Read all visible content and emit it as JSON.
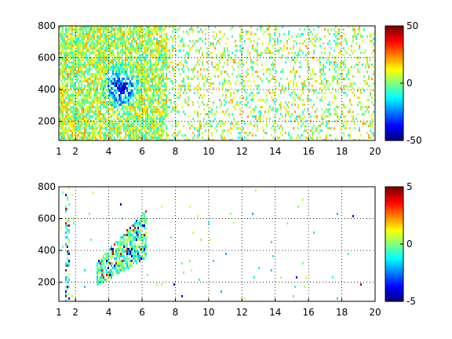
{
  "chart_data": [
    {
      "type": "heatmap",
      "title": "",
      "xlabel": "",
      "ylabel": "",
      "xlim": [
        1,
        20
      ],
      "ylim": [
        80,
        800
      ],
      "x_ticks": [
        1,
        2,
        4,
        6,
        8,
        10,
        12,
        14,
        16,
        18,
        20
      ],
      "y_ticks": [
        200,
        400,
        600,
        800
      ],
      "grid": true,
      "grid_style": "dotted",
      "colormap": "jet",
      "colorbar": {
        "ticks": [
          -50,
          0,
          50
        ],
        "range": [
          -50,
          50
        ]
      },
      "description_fields": {
        "dense_region_x": [
          1,
          7.5
        ],
        "strong_negative_center": {
          "x": 4.7,
          "y": 400
        },
        "sparse_region_x": [
          7.5,
          20
        ]
      }
    },
    {
      "type": "heatmap",
      "title": "",
      "xlabel": "",
      "ylabel": "",
      "xlim": [
        1,
        20
      ],
      "ylim": [
        80,
        800
      ],
      "x_ticks": [
        1,
        2,
        4,
        6,
        8,
        10,
        12,
        14,
        16,
        18,
        20
      ],
      "y_ticks": [
        200,
        400,
        600,
        800
      ],
      "grid": true,
      "grid_style": "dotted",
      "colormap": "jet",
      "colorbar": {
        "ticks": [
          -5,
          0,
          5
        ],
        "range": [
          -5,
          5
        ]
      },
      "description_fields": {
        "cluster_x": [
          3.2,
          6.2
        ],
        "cluster_y": [
          180,
          660
        ]
      }
    }
  ]
}
